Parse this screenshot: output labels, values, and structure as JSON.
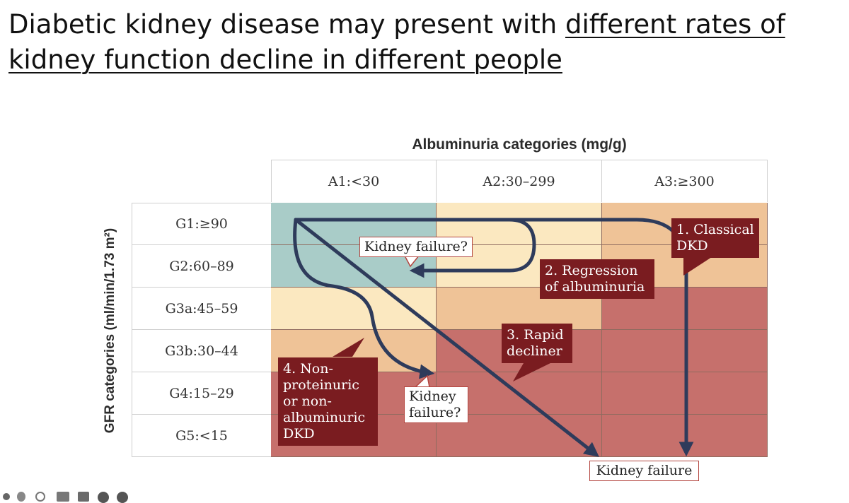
{
  "slide": {
    "title_part1": "Diabetic kidney disease may present with ",
    "title_part2": "different rates of kidney function decline in different people"
  },
  "diagram": {
    "axis_top": "Albuminuria categories (mg/g)",
    "axis_left": "GFR categories (ml/min/1.73 m²)",
    "columns": [
      "A1:<30",
      "A2:30–299",
      "A3:≥300"
    ],
    "rows": [
      "G1:≥90",
      "G2:60–89",
      "G3a:45–59",
      "G3b:30–44",
      "G4:15–29",
      "G5:<15"
    ],
    "cell_colors": {
      "green": "#a9ccc8",
      "yellow": "#fbe8c0",
      "orange": "#efc397",
      "red": "#c6706c"
    },
    "grid": [
      [
        "green",
        "yellow",
        "orange"
      ],
      [
        "green",
        "yellow",
        "orange"
      ],
      [
        "yellow",
        "orange",
        "red"
      ],
      [
        "orange",
        "red",
        "red"
      ],
      [
        "red",
        "red",
        "red"
      ],
      [
        "red",
        "red",
        "red"
      ]
    ],
    "labels": {
      "kidney_failure_q1": "Kidney failure?",
      "kidney_failure_q2_line1": "Kidney",
      "kidney_failure_q2_line2": "failure?",
      "kidney_failure": "Kidney failure"
    },
    "callouts": {
      "classical_line1": "1. Classical",
      "classical_line2": "DKD",
      "regression_line1": "2. Regression",
      "regression_line2": "of albuminuria",
      "rapid_line1": "3. Rapid",
      "rapid_line2": "decliner",
      "nonprot_line1": "4. Non-",
      "nonprot_line2": "proteinuric",
      "nonprot_line3": "or non-",
      "nonprot_line4": "albuminuric",
      "nonprot_line5": "DKD"
    },
    "arrow_color": "#2e3b5b",
    "callout_color": "#7a1c20"
  }
}
